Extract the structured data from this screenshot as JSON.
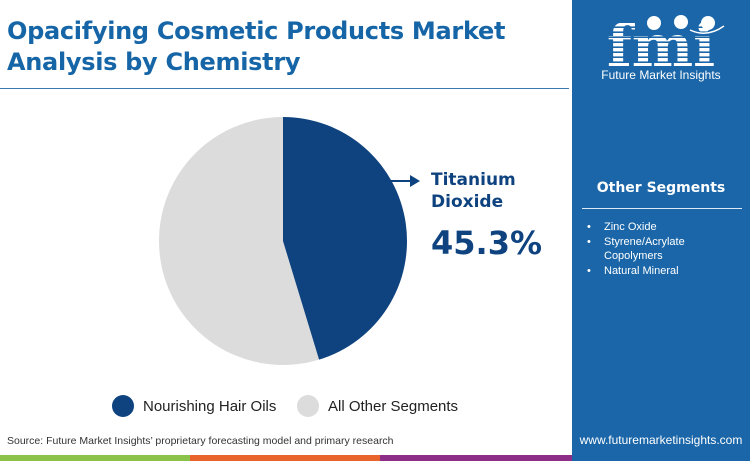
{
  "header": {
    "title_line1": "Opacifying Cosmetic Products Market",
    "title_line2": "Analysis by Chemistry"
  },
  "brand": {
    "logo_letters": "fmi",
    "logo_caption": "Future Market Insights",
    "url": "www.futuremarketinsights.com",
    "panel_color": "#1a66a8"
  },
  "other_segments": {
    "title": "Other Segments",
    "items": [
      "Zinc Oxide",
      "Styrene/Acrylate Copolymers",
      "Natural Mineral"
    ]
  },
  "callout": {
    "label_line1": "Titanium",
    "label_line2": "Dioxide",
    "value": "45.3%"
  },
  "legend": [
    {
      "label": "Nourishing Hair Oils",
      "color": "#0f4380"
    },
    {
      "label": "All Other Segments",
      "color": "#dcdcdc"
    }
  ],
  "source": "Source: Future Market Insights’ proprietary forecasting model and primary research",
  "footer_bars": [
    "#8bc34a",
    "#e8642c",
    "#8e2d88"
  ],
  "chart_data": {
    "type": "pie",
    "title": "Opacifying Cosmetic Products Market Analysis by Chemistry",
    "categories": [
      "Titanium Dioxide",
      "All Other Segments"
    ],
    "values": [
      45.3,
      54.7
    ],
    "colors": [
      "#0f4380",
      "#dcdcdc"
    ],
    "legend": [
      "Nourishing Hair Oils",
      "All Other Segments"
    ],
    "legend_position": "bottom",
    "annotations": [
      "Titanium Dioxide 45.3%"
    ]
  }
}
